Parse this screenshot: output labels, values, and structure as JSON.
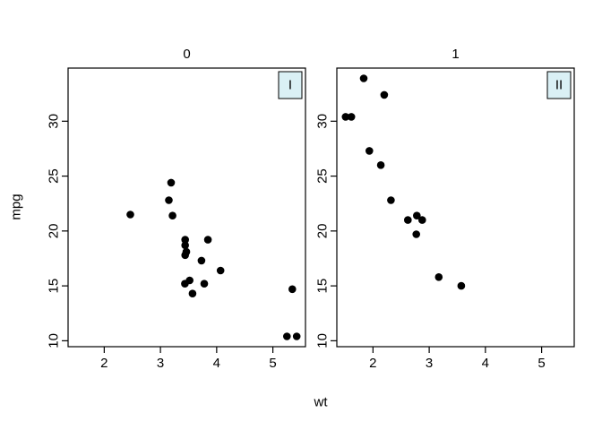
{
  "figure": {
    "xlabel": "wt",
    "ylabel": "mpg",
    "background": "#ffffff",
    "point_color": "#000000",
    "axis_color": "#000000",
    "strip_fill": "#daf0f5",
    "strip_border": "#000000"
  },
  "chart_data": [
    {
      "type": "scatter",
      "panel_title": "0",
      "strip_label": "I",
      "xlabel": "wt",
      "ylabel": "mpg",
      "xlim": [
        1.357,
        5.58
      ],
      "ylim": [
        9.46,
        34.84
      ],
      "xticks": [
        2,
        3,
        4,
        5
      ],
      "yticks": [
        10,
        15,
        20,
        25,
        30
      ],
      "grid": false,
      "points": [
        [
          3.215,
          21.4
        ],
        [
          3.44,
          18.7
        ],
        [
          3.46,
          18.1
        ],
        [
          3.57,
          14.3
        ],
        [
          3.19,
          24.4
        ],
        [
          3.15,
          22.8
        ],
        [
          3.44,
          19.2
        ],
        [
          3.44,
          17.8
        ],
        [
          4.07,
          16.4
        ],
        [
          3.73,
          17.3
        ],
        [
          3.78,
          15.2
        ],
        [
          5.25,
          10.4
        ],
        [
          5.424,
          10.4
        ],
        [
          5.345,
          14.7
        ],
        [
          2.465,
          21.5
        ],
        [
          3.52,
          15.5
        ],
        [
          3.435,
          15.2
        ],
        [
          3.845,
          19.2
        ]
      ]
    },
    {
      "type": "scatter",
      "panel_title": "1",
      "strip_label": "II",
      "xlabel": "wt",
      "ylabel": "mpg",
      "xlim": [
        1.357,
        5.58
      ],
      "ylim": [
        9.46,
        34.84
      ],
      "xticks": [
        2,
        3,
        4,
        5
      ],
      "yticks": [
        10,
        15,
        20,
        25,
        30
      ],
      "grid": false,
      "points": [
        [
          2.62,
          21.0
        ],
        [
          2.875,
          21.0
        ],
        [
          2.32,
          22.8
        ],
        [
          2.2,
          32.4
        ],
        [
          1.615,
          30.4
        ],
        [
          1.835,
          33.9
        ],
        [
          1.935,
          27.3
        ],
        [
          2.14,
          26.0
        ],
        [
          1.513,
          30.4
        ],
        [
          3.17,
          15.8
        ],
        [
          2.77,
          19.7
        ],
        [
          3.57,
          15.0
        ],
        [
          2.78,
          21.4
        ]
      ]
    }
  ]
}
